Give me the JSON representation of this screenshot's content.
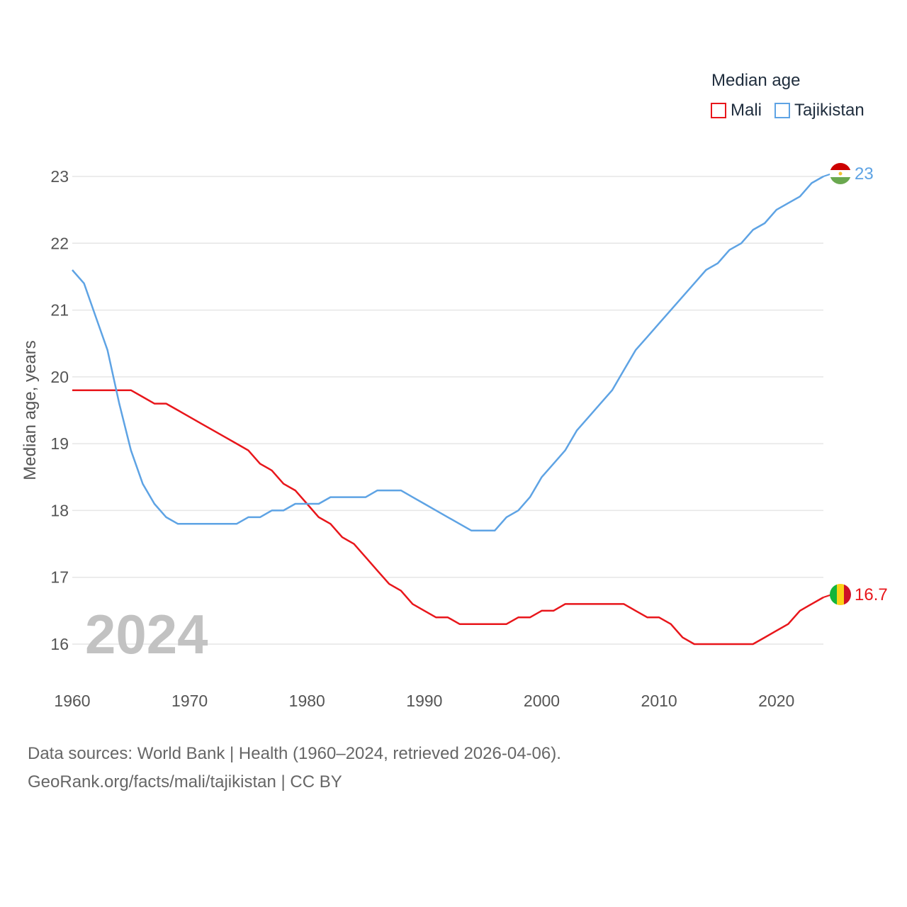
{
  "legend": {
    "title": "Median age",
    "items": [
      {
        "name": "Mali",
        "color": "#e8161b"
      },
      {
        "name": "Tajikistan",
        "color": "#5ea3e4"
      }
    ]
  },
  "sources": {
    "line1": "Data sources: World Bank | Health (1960–2024, retrieved 2026-04-06).",
    "line2": "GeoRank.org/facts/mali/tajikistan | CC BY"
  },
  "chart_data": {
    "type": "line",
    "title": "Median age",
    "xlabel": "",
    "ylabel": "Median age, years",
    "year_label": "2024",
    "xlim": [
      1960,
      2024
    ],
    "ylim": [
      15.5,
      23.3
    ],
    "xticks": [
      1960,
      1970,
      1980,
      1990,
      2000,
      2010,
      2020
    ],
    "yticks": [
      16,
      17,
      18,
      19,
      20,
      21,
      22,
      23
    ],
    "grid": true,
    "legend_position": "top-right",
    "x_start": 1960,
    "series": [
      {
        "name": "Mali",
        "color": "#e8161b",
        "flag": "mali-flag",
        "end_label": "16.7",
        "values": [
          19.8,
          19.8,
          19.8,
          19.8,
          19.8,
          19.8,
          19.7,
          19.6,
          19.6,
          19.5,
          19.4,
          19.3,
          19.2,
          19.1,
          19.0,
          18.9,
          18.7,
          18.6,
          18.4,
          18.3,
          18.1,
          17.9,
          17.8,
          17.6,
          17.5,
          17.3,
          17.1,
          16.9,
          16.8,
          16.6,
          16.5,
          16.4,
          16.4,
          16.3,
          16.3,
          16.3,
          16.3,
          16.3,
          16.4,
          16.4,
          16.5,
          16.5,
          16.6,
          16.6,
          16.6,
          16.6,
          16.6,
          16.6,
          16.5,
          16.4,
          16.4,
          16.3,
          16.1,
          16.0,
          16.0,
          16.0,
          16.0,
          16.0,
          16.0,
          16.1,
          16.2,
          16.3,
          16.5,
          16.6,
          16.7
        ]
      },
      {
        "name": "Tajikistan",
        "color": "#5ea3e4",
        "flag": "tajikistan-flag",
        "end_label": "23",
        "values": [
          21.6,
          21.4,
          20.9,
          20.4,
          19.6,
          18.9,
          18.4,
          18.1,
          17.9,
          17.8,
          17.8,
          17.8,
          17.8,
          17.8,
          17.8,
          17.9,
          17.9,
          18.0,
          18.0,
          18.1,
          18.1,
          18.1,
          18.2,
          18.2,
          18.2,
          18.2,
          18.3,
          18.3,
          18.3,
          18.2,
          18.1,
          18.0,
          17.9,
          17.8,
          17.7,
          17.7,
          17.7,
          17.9,
          18.0,
          18.2,
          18.5,
          18.7,
          18.9,
          19.2,
          19.4,
          19.6,
          19.8,
          20.1,
          20.4,
          20.6,
          20.8,
          21.0,
          21.2,
          21.4,
          21.6,
          21.7,
          21.9,
          22.0,
          22.2,
          22.3,
          22.5,
          22.6,
          22.7,
          22.9,
          23.0
        ]
      }
    ]
  }
}
